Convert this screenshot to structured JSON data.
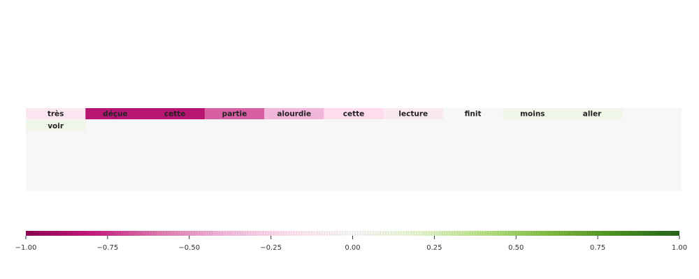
{
  "chart_data": {
    "type": "heatmap",
    "title": "",
    "xlabel": "",
    "ylabel": "",
    "grid": false,
    "rows": [
      [
        {
          "word": "très",
          "value": -0.15
        },
        {
          "word": "déçue",
          "value": -0.85
        },
        {
          "word": "cette",
          "value": -0.85
        },
        {
          "word": "partie",
          "value": -0.65
        },
        {
          "word": "alourdie",
          "value": -0.4
        },
        {
          "word": "cette",
          "value": -0.22
        },
        {
          "word": "lecture",
          "value": -0.12
        },
        {
          "word": "finit",
          "value": 0.0
        },
        {
          "word": "moins",
          "value": 0.08
        },
        {
          "word": "aller",
          "value": 0.08
        }
      ],
      [
        {
          "word": "voir",
          "value": 0.08
        }
      ]
    ],
    "colorbar": {
      "colormap": "PiYG",
      "min": -1.0,
      "max": 1.0,
      "ticks": [
        -1.0,
        -0.75,
        -0.5,
        -0.25,
        0.0,
        0.25,
        0.5,
        0.75,
        1.0
      ],
      "tick_labels": [
        "−1.00",
        "−0.75",
        "−0.50",
        "−0.25",
        "0.00",
        "0.25",
        "0.50",
        "0.75",
        "1.00"
      ]
    }
  }
}
